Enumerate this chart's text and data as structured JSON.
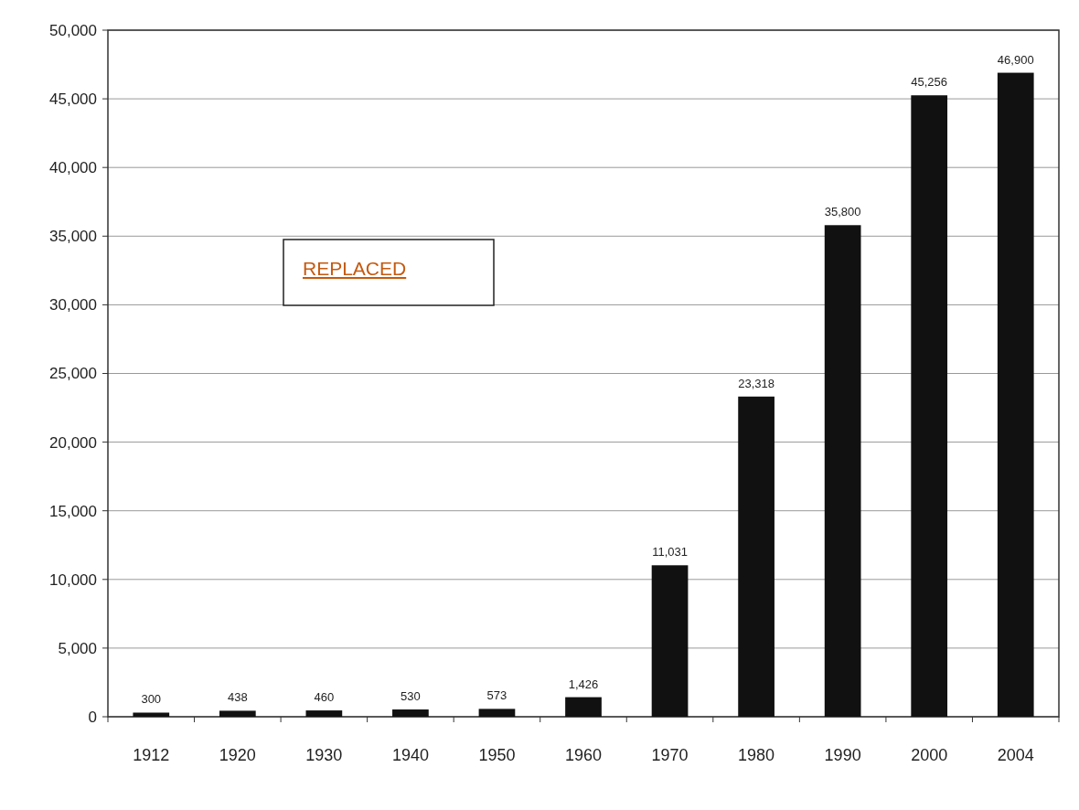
{
  "chart_data": {
    "type": "bar",
    "categories": [
      "1912",
      "1920",
      "1930",
      "1940",
      "1950",
      "1960",
      "1970",
      "1980",
      "1990",
      "2000",
      "2004"
    ],
    "values": [
      300,
      438,
      460,
      530,
      573,
      1426,
      11031,
      23318,
      35800,
      45256,
      46900
    ],
    "color": "#111111",
    "ylim": [
      0,
      50000
    ],
    "yticks": [
      {
        "value": 0,
        "label": "0"
      },
      {
        "value": 5000,
        "label": "5,000"
      },
      {
        "value": 10000,
        "label": "10,000"
      },
      {
        "value": 15000,
        "label": "15,000"
      },
      {
        "value": 20000,
        "label": "20,000"
      },
      {
        "value": 25000,
        "label": "25,000"
      },
      {
        "value": 30000,
        "label": "30,000"
      },
      {
        "value": 35000,
        "label": "35,000"
      },
      {
        "value": 40000,
        "label": "40,000"
      },
      {
        "value": 45000,
        "label": "45,000"
      },
      {
        "value": 50000,
        "label": "50,000"
      }
    ],
    "value_labels": [
      "300",
      "438",
      "460",
      "530",
      "573",
      "1,426",
      "11,031",
      "23,318",
      "35,800",
      "45,256",
      "46,900"
    ],
    "annotations": [
      "REPLACED"
    ],
    "grid": "y"
  }
}
